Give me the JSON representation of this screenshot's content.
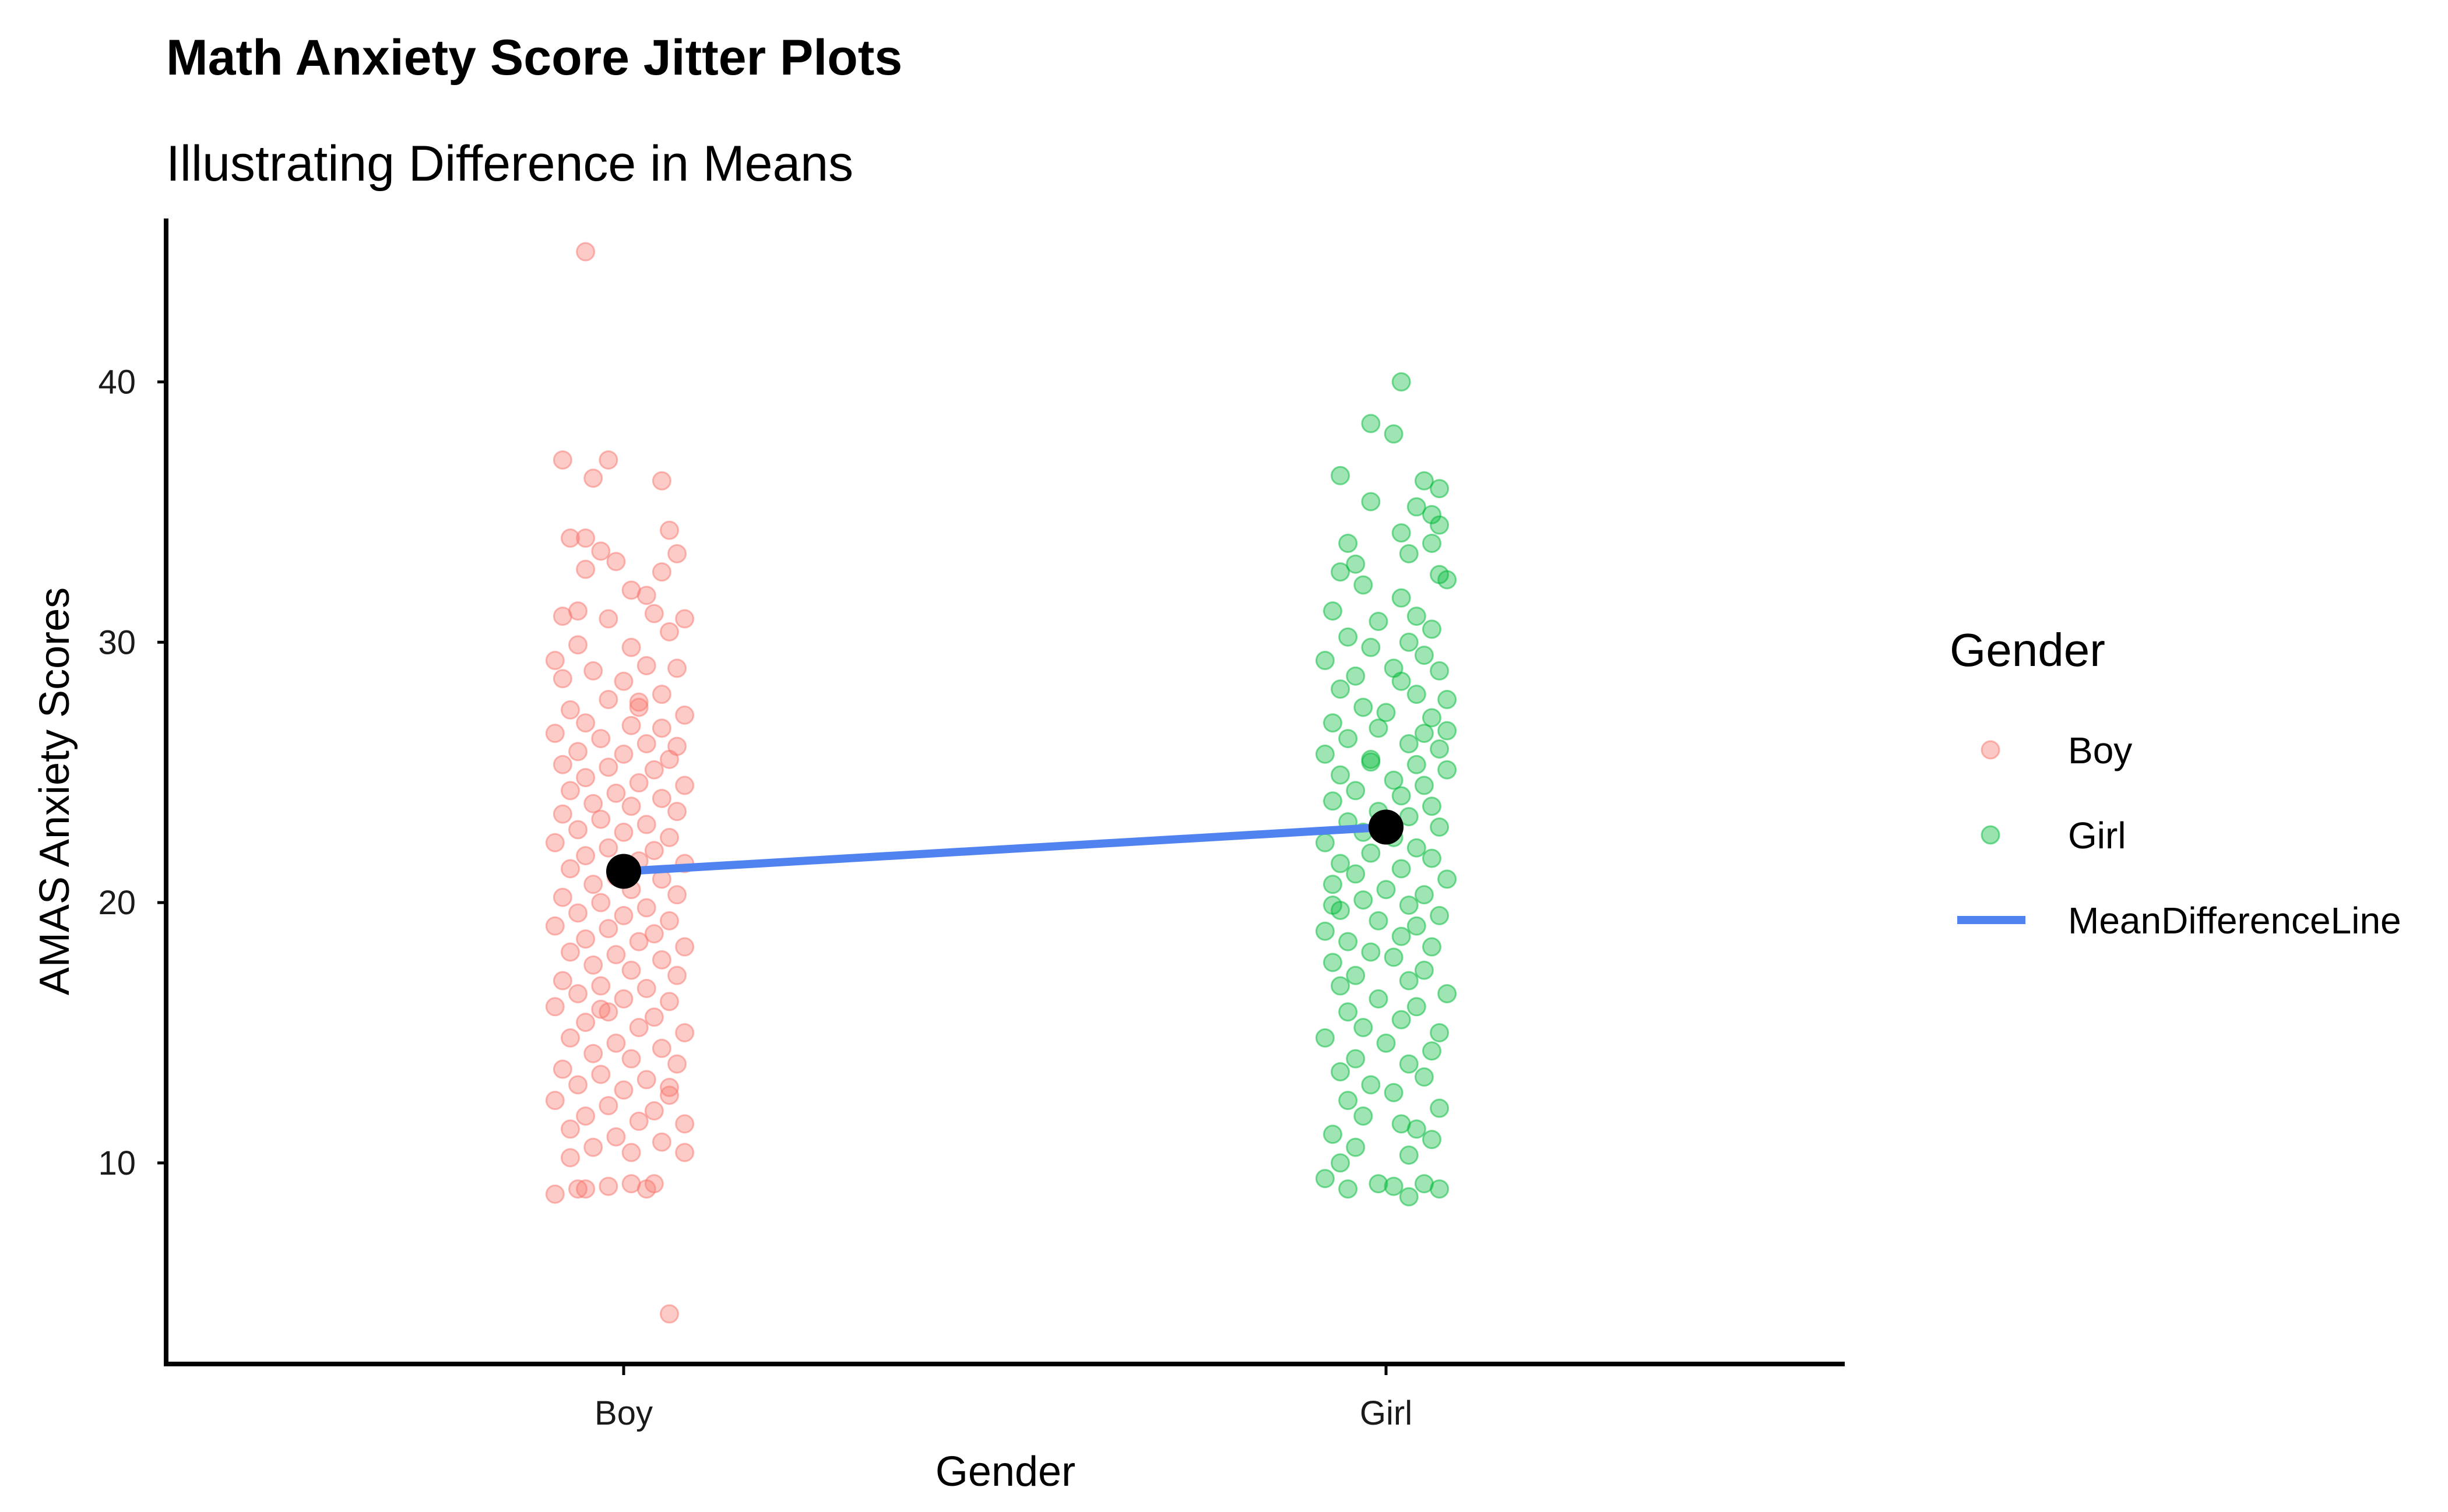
{
  "chart_data": {
    "type": "scatter",
    "title": "Math Anxiety Score Jitter Plots",
    "subtitle": "Illustrating Difference in Means",
    "xlabel": "Gender",
    "ylabel": "AMAS Anxiety Scores",
    "categories": [
      "Boy",
      "Girl"
    ],
    "y_ticks": [
      10,
      20,
      30,
      40
    ],
    "ylim": [
      2.5,
      46.5
    ],
    "grid": false,
    "legend": {
      "title": "Gender",
      "position": "right",
      "entries": [
        "Boy",
        "Girl",
        "MeanDifferenceLine"
      ]
    },
    "colors": {
      "Boy": "#F8766D",
      "Girl": "#00BA38",
      "MeanDifferenceLine": "#5082F0",
      "mean_point": "#000000"
    },
    "means": {
      "Boy": 21.2,
      "Girl": 22.9
    },
    "series": [
      {
        "name": "Boy",
        "points": [
          [
            -0.05,
            45.0
          ],
          [
            0.06,
            4.2
          ],
          [
            -0.08,
            37.0
          ],
          [
            -0.02,
            37.0
          ],
          [
            0.05,
            36.2
          ],
          [
            -0.04,
            36.3
          ],
          [
            -0.07,
            34.0
          ],
          [
            -0.05,
            34.0
          ],
          [
            0.06,
            34.3
          ],
          [
            -0.03,
            33.5
          ],
          [
            0.07,
            33.4
          ],
          [
            -0.01,
            33.1
          ],
          [
            0.05,
            32.7
          ],
          [
            -0.05,
            32.8
          ],
          [
            0.01,
            32.0
          ],
          [
            -0.06,
            31.2
          ],
          [
            0.03,
            31.8
          ],
          [
            -0.08,
            31.0
          ],
          [
            -0.02,
            30.9
          ],
          [
            0.04,
            31.1
          ],
          [
            0.08,
            30.9
          ],
          [
            0.06,
            30.4
          ],
          [
            -0.06,
            29.9
          ],
          [
            0.01,
            29.8
          ],
          [
            -0.09,
            29.3
          ],
          [
            0.03,
            29.1
          ],
          [
            0.07,
            29.0
          ],
          [
            -0.04,
            28.9
          ],
          [
            0.0,
            28.5
          ],
          [
            -0.08,
            28.6
          ],
          [
            0.05,
            28.0
          ],
          [
            -0.02,
            27.8
          ],
          [
            0.02,
            27.7
          ],
          [
            -0.07,
            27.4
          ],
          [
            0.08,
            27.2
          ],
          [
            -0.05,
            26.9
          ],
          [
            0.01,
            26.8
          ],
          [
            0.05,
            26.7
          ],
          [
            -0.09,
            26.5
          ],
          [
            -0.03,
            26.3
          ],
          [
            0.03,
            26.1
          ],
          [
            0.07,
            26.0
          ],
          [
            -0.06,
            25.8
          ],
          [
            0.0,
            25.7
          ],
          [
            0.06,
            25.5
          ],
          [
            -0.08,
            25.3
          ],
          [
            -0.02,
            25.2
          ],
          [
            0.04,
            25.1
          ],
          [
            -0.05,
            24.8
          ],
          [
            0.02,
            24.6
          ],
          [
            0.08,
            24.5
          ],
          [
            -0.07,
            24.3
          ],
          [
            -0.01,
            24.2
          ],
          [
            0.05,
            24.0
          ],
          [
            -0.04,
            23.8
          ],
          [
            0.01,
            23.7
          ],
          [
            0.07,
            23.5
          ],
          [
            -0.08,
            23.4
          ],
          [
            -0.03,
            23.2
          ],
          [
            0.03,
            23.0
          ],
          [
            -0.06,
            22.8
          ],
          [
            0.0,
            22.7
          ],
          [
            0.06,
            22.5
          ],
          [
            -0.09,
            22.3
          ],
          [
            -0.02,
            22.1
          ],
          [
            0.04,
            22.0
          ],
          [
            -0.05,
            21.8
          ],
          [
            0.02,
            21.6
          ],
          [
            0.08,
            21.5
          ],
          [
            -0.07,
            21.3
          ],
          [
            -0.01,
            21.0
          ],
          [
            0.05,
            20.9
          ],
          [
            -0.04,
            20.7
          ],
          [
            0.01,
            20.5
          ],
          [
            0.07,
            20.3
          ],
          [
            -0.08,
            20.2
          ],
          [
            -0.03,
            20.0
          ],
          [
            0.03,
            19.8
          ],
          [
            -0.06,
            19.6
          ],
          [
            0.0,
            19.5
          ],
          [
            0.06,
            19.3
          ],
          [
            -0.09,
            19.1
          ],
          [
            -0.02,
            19.0
          ],
          [
            0.04,
            18.8
          ],
          [
            -0.05,
            18.6
          ],
          [
            0.02,
            18.5
          ],
          [
            0.08,
            18.3
          ],
          [
            -0.07,
            18.1
          ],
          [
            -0.01,
            18.0
          ],
          [
            0.05,
            17.8
          ],
          [
            -0.04,
            17.6
          ],
          [
            0.01,
            17.4
          ],
          [
            0.07,
            17.2
          ],
          [
            -0.08,
            17.0
          ],
          [
            -0.03,
            16.8
          ],
          [
            0.03,
            16.7
          ],
          [
            -0.06,
            16.5
          ],
          [
            0.0,
            16.3
          ],
          [
            0.06,
            16.2
          ],
          [
            -0.09,
            16.0
          ],
          [
            -0.02,
            15.8
          ],
          [
            0.04,
            15.6
          ],
          [
            -0.05,
            15.4
          ],
          [
            0.02,
            15.2
          ],
          [
            0.08,
            15.0
          ],
          [
            -0.07,
            14.8
          ],
          [
            -0.01,
            14.6
          ],
          [
            0.05,
            14.4
          ],
          [
            -0.04,
            14.2
          ],
          [
            0.01,
            14.0
          ],
          [
            0.07,
            13.8
          ],
          [
            -0.08,
            13.6
          ],
          [
            -0.03,
            13.4
          ],
          [
            0.03,
            13.2
          ],
          [
            -0.06,
            13.0
          ],
          [
            0.0,
            12.8
          ],
          [
            0.06,
            12.6
          ],
          [
            -0.09,
            12.4
          ],
          [
            -0.02,
            12.2
          ],
          [
            0.04,
            12.0
          ],
          [
            -0.05,
            11.8
          ],
          [
            0.02,
            11.6
          ],
          [
            0.08,
            11.5
          ],
          [
            -0.07,
            11.3
          ],
          [
            -0.01,
            11.0
          ],
          [
            0.05,
            10.8
          ],
          [
            -0.04,
            10.6
          ],
          [
            0.01,
            10.4
          ],
          [
            0.08,
            10.4
          ],
          [
            -0.07,
            10.2
          ],
          [
            -0.09,
            8.8
          ],
          [
            -0.05,
            9.0
          ],
          [
            -0.02,
            9.1
          ],
          [
            0.01,
            9.2
          ],
          [
            0.03,
            9.0
          ],
          [
            -0.06,
            9.0
          ],
          [
            0.04,
            9.2
          ],
          [
            0.06,
            12.9
          ],
          [
            -0.03,
            15.9
          ],
          [
            0.02,
            27.5
          ]
        ]
      },
      {
        "name": "Girl",
        "points": [
          [
            0.02,
            40.0
          ],
          [
            -0.02,
            38.4
          ],
          [
            0.01,
            38.0
          ],
          [
            -0.06,
            36.4
          ],
          [
            0.05,
            36.2
          ],
          [
            0.07,
            35.9
          ],
          [
            -0.02,
            35.4
          ],
          [
            0.04,
            35.2
          ],
          [
            0.06,
            34.9
          ],
          [
            0.07,
            34.5
          ],
          [
            0.02,
            34.2
          ],
          [
            -0.05,
            33.8
          ],
          [
            0.06,
            33.8
          ],
          [
            0.03,
            33.4
          ],
          [
            -0.04,
            33.0
          ],
          [
            -0.06,
            32.7
          ],
          [
            0.07,
            32.6
          ],
          [
            0.08,
            32.4
          ],
          [
            -0.03,
            32.2
          ],
          [
            0.02,
            31.7
          ],
          [
            -0.07,
            31.2
          ],
          [
            0.04,
            31.0
          ],
          [
            -0.01,
            30.8
          ],
          [
            0.06,
            30.5
          ],
          [
            -0.05,
            30.2
          ],
          [
            0.03,
            30.0
          ],
          [
            -0.02,
            29.8
          ],
          [
            0.05,
            29.5
          ],
          [
            -0.08,
            29.3
          ],
          [
            0.01,
            29.0
          ],
          [
            0.07,
            28.9
          ],
          [
            -0.04,
            28.7
          ],
          [
            0.02,
            28.5
          ],
          [
            -0.06,
            28.2
          ],
          [
            0.04,
            28.0
          ],
          [
            0.08,
            27.8
          ],
          [
            -0.03,
            27.5
          ],
          [
            0.0,
            27.3
          ],
          [
            0.06,
            27.1
          ],
          [
            -0.07,
            26.9
          ],
          [
            -0.01,
            26.7
          ],
          [
            0.05,
            26.5
          ],
          [
            -0.05,
            26.3
          ],
          [
            0.03,
            26.1
          ],
          [
            0.07,
            25.9
          ],
          [
            -0.08,
            25.7
          ],
          [
            -0.02,
            25.5
          ],
          [
            0.04,
            25.3
          ],
          [
            0.08,
            25.1
          ],
          [
            -0.06,
            24.9
          ],
          [
            0.01,
            24.7
          ],
          [
            0.05,
            24.5
          ],
          [
            -0.04,
            24.3
          ],
          [
            0.02,
            24.1
          ],
          [
            -0.07,
            23.9
          ],
          [
            0.06,
            23.7
          ],
          [
            -0.01,
            23.5
          ],
          [
            0.03,
            23.3
          ],
          [
            -0.05,
            23.1
          ],
          [
            0.07,
            22.9
          ],
          [
            -0.03,
            22.7
          ],
          [
            0.01,
            22.5
          ],
          [
            -0.08,
            22.3
          ],
          [
            0.04,
            22.1
          ],
          [
            -0.02,
            21.9
          ],
          [
            0.06,
            21.7
          ],
          [
            -0.06,
            21.5
          ],
          [
            0.02,
            21.3
          ],
          [
            -0.04,
            21.1
          ],
          [
            0.08,
            20.9
          ],
          [
            -0.07,
            20.7
          ],
          [
            0.0,
            20.5
          ],
          [
            0.05,
            20.3
          ],
          [
            -0.03,
            20.1
          ],
          [
            0.03,
            19.9
          ],
          [
            -0.06,
            19.7
          ],
          [
            0.07,
            19.5
          ],
          [
            -0.01,
            19.3
          ],
          [
            0.04,
            19.1
          ],
          [
            -0.08,
            18.9
          ],
          [
            0.02,
            18.7
          ],
          [
            -0.05,
            18.5
          ],
          [
            0.06,
            18.3
          ],
          [
            -0.02,
            18.1
          ],
          [
            0.01,
            17.9
          ],
          [
            -0.07,
            17.7
          ],
          [
            0.05,
            17.4
          ],
          [
            -0.04,
            17.2
          ],
          [
            0.03,
            17.0
          ],
          [
            -0.06,
            16.8
          ],
          [
            0.08,
            16.5
          ],
          [
            -0.01,
            16.3
          ],
          [
            0.04,
            16.0
          ],
          [
            -0.05,
            15.8
          ],
          [
            0.02,
            15.5
          ],
          [
            -0.03,
            15.2
          ],
          [
            0.07,
            15.0
          ],
          [
            -0.08,
            14.8
          ],
          [
            0.0,
            14.6
          ],
          [
            0.06,
            14.3
          ],
          [
            -0.04,
            14.0
          ],
          [
            0.03,
            13.8
          ],
          [
            -0.06,
            13.5
          ],
          [
            0.05,
            13.3
          ],
          [
            -0.02,
            13.0
          ],
          [
            0.01,
            12.7
          ],
          [
            -0.05,
            12.4
          ],
          [
            0.07,
            12.1
          ],
          [
            -0.03,
            11.8
          ],
          [
            0.02,
            11.5
          ],
          [
            -0.07,
            11.1
          ],
          [
            0.06,
            10.9
          ],
          [
            -0.04,
            10.6
          ],
          [
            0.03,
            10.3
          ],
          [
            -0.06,
            10.0
          ],
          [
            -0.08,
            9.4
          ],
          [
            -0.05,
            9.0
          ],
          [
            -0.01,
            9.2
          ],
          [
            0.01,
            9.1
          ],
          [
            0.03,
            8.7
          ],
          [
            0.05,
            9.2
          ],
          [
            0.07,
            9.0
          ],
          [
            0.04,
            11.3
          ],
          [
            -0.02,
            25.4
          ],
          [
            0.08,
            26.6
          ],
          [
            -0.07,
            19.9
          ]
        ]
      }
    ]
  }
}
